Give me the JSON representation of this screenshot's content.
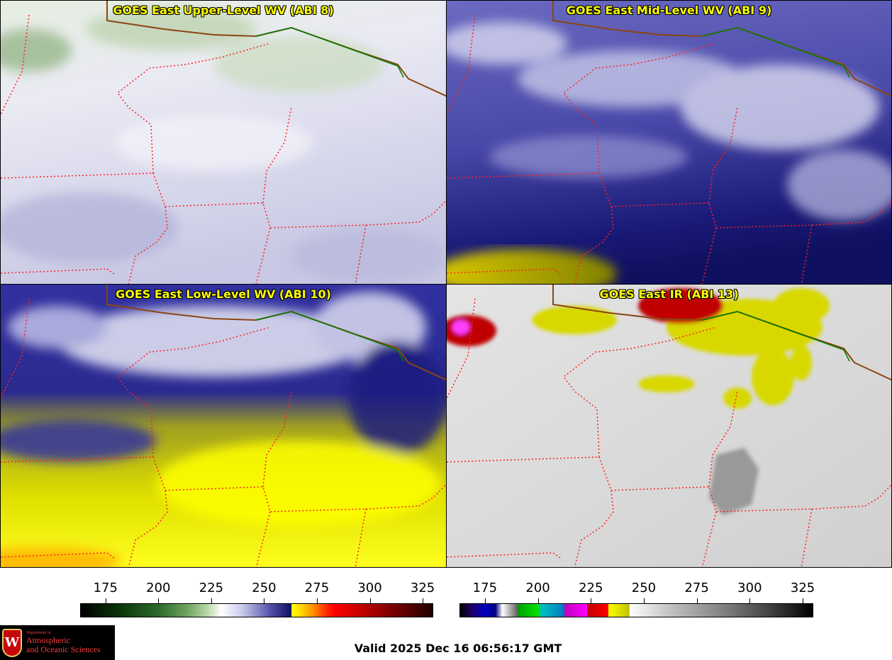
{
  "panels": [
    {
      "id": "upper",
      "title": "GOES East Upper-Level WV (ABI 8)",
      "style": "upper-wv"
    },
    {
      "id": "mid",
      "title": "GOES East Mid-Level WV (ABI 9)",
      "style": "mid-wv"
    },
    {
      "id": "low",
      "title": "GOES East Low-Level WV (ABI 10)",
      "style": "low-wv"
    },
    {
      "id": "ir",
      "title": "GOES East IR (ABI 13)",
      "style": "ir"
    }
  ],
  "colorbars": {
    "wv": {
      "ticks": [
        "175",
        "200",
        "225",
        "250",
        "275",
        "300",
        "325"
      ],
      "min": 163,
      "max": 330
    },
    "ir": {
      "ticks": [
        "175",
        "200",
        "225",
        "250",
        "275",
        "300",
        "325"
      ],
      "min": 163,
      "max": 330
    }
  },
  "colors": {
    "state_borders": "#ff2020",
    "international_border": "#008000",
    "canada_border": "#8b4513",
    "title_text": "#ffff00"
  },
  "logo": {
    "department_line": "Department of",
    "name_line_1": "Atmospheric",
    "name_line_2": "and Oceanic Sciences",
    "crest_letter": "W"
  },
  "valid_time": "Valid 2025 Dec 16 06:56:17 GMT"
}
